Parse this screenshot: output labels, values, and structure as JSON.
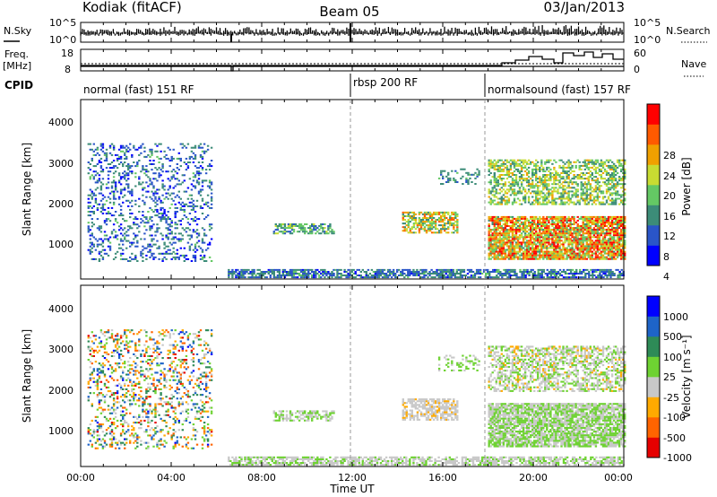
{
  "header": {
    "radar": "Kodiak (fitACF)",
    "beam": "Beam 05",
    "date": "03/Jan/2013"
  },
  "noise_panel": {
    "left_label": "N.Sky",
    "right_label": "N.Search",
    "left_ticks": [
      "10^5",
      "10^0"
    ],
    "right_ticks": [
      "10^5",
      "10^0"
    ]
  },
  "freq_panel": {
    "left_label_top": "Freq.",
    "left_label_bottom": "[MHz]",
    "right_label": "Nave",
    "left_ticks": [
      "18",
      "8"
    ],
    "right_ticks": [
      "60",
      "0"
    ]
  },
  "cpid": {
    "label": "CPID",
    "segments": [
      {
        "name": "normal (fast) 151 RF",
        "start": 0,
        "end": 12
      },
      {
        "name": "rbsp 200 RF",
        "start": 12,
        "end": 18
      },
      {
        "name": "normalsound (fast) 157 RF",
        "start": 18,
        "end": 24
      }
    ]
  },
  "x_axis": {
    "label": "Time UT",
    "ticks": [
      "00:00",
      "04:00",
      "08:00",
      "12:00",
      "16:00",
      "20:00",
      "00:00"
    ],
    "range_hours": [
      0,
      24
    ]
  },
  "power_panel": {
    "ylabel": "Slant Range [km]",
    "yticks": [
      "4000",
      "3000",
      "2000",
      "1000"
    ],
    "colorbar_label": "Power [dB]",
    "colorbar_ticks": [
      "28",
      "24",
      "20",
      "16",
      "12",
      "8",
      "4"
    ]
  },
  "velocity_panel": {
    "ylabel": "Slant Range [km]",
    "yticks": [
      "4000",
      "3000",
      "2000",
      "1000"
    ],
    "colorbar_label": "Velocity [m s⁻¹]",
    "colorbar_ticks": [
      "1000",
      "500",
      "100",
      "25",
      "-25",
      "-100",
      "-500",
      "-1000"
    ]
  },
  "chart_data": [
    {
      "type": "heatmap",
      "title": "Power",
      "xlabel": "Time UT",
      "ylabel": "Slant Range [km]",
      "xlim": [
        0,
        24
      ],
      "ylim": [
        180,
        4600
      ],
      "color_range": [
        0,
        30
      ],
      "colors": [
        "#0000ff",
        "#2a55c8",
        "#3c8c78",
        "#64c864",
        "#c8dc32",
        "#f0a000",
        "#ff5a00",
        "#ff0000"
      ],
      "regions": [
        {
          "t": [
            0.3,
            5.8
          ],
          "r": [
            600,
            3500
          ],
          "power": [
            2,
            12
          ],
          "density": 0.25
        },
        {
          "t": [
            6.5,
            24
          ],
          "r": [
            200,
            420
          ],
          "power": [
            3,
            12
          ],
          "density": 0.7
        },
        {
          "t": [
            8.5,
            11.2
          ],
          "r": [
            1280,
            1520
          ],
          "power": [
            6,
            16
          ],
          "density": 0.6
        },
        {
          "t": [
            14.2,
            16.6
          ],
          "r": [
            1300,
            1800
          ],
          "power": [
            8,
            24
          ],
          "density": 0.7
        },
        {
          "t": [
            15.8,
            17.6
          ],
          "r": [
            2500,
            2900
          ],
          "power": [
            6,
            12
          ],
          "density": 0.3
        },
        {
          "t": [
            18.0,
            24
          ],
          "r": [
            650,
            1700
          ],
          "power": [
            10,
            30
          ],
          "density": 0.85
        },
        {
          "t": [
            18.0,
            24
          ],
          "r": [
            2000,
            3100
          ],
          "power": [
            8,
            20
          ],
          "density": 0.55
        }
      ]
    },
    {
      "type": "heatmap",
      "title": "Velocity",
      "xlabel": "Time UT",
      "ylabel": "Slant Range [km]",
      "xlim": [
        0,
        24
      ],
      "ylim": [
        180,
        4600
      ],
      "color_range": [
        -1000,
        1000
      ],
      "colors": [
        "#e60000",
        "#ff6400",
        "#ffaa00",
        "#c8c8c8",
        "#6ed232",
        "#2e8b57",
        "#1e64c8",
        "#0000ff"
      ],
      "regions": [
        {
          "t": [
            0.3,
            5.8
          ],
          "r": [
            600,
            3500
          ],
          "velocity": [
            -800,
            800
          ],
          "density": 0.25
        },
        {
          "t": [
            6.5,
            24
          ],
          "r": [
            200,
            420
          ],
          "velocity": [
            -150,
            60
          ],
          "density": 0.7
        },
        {
          "t": [
            8.5,
            11.2
          ],
          "r": [
            1280,
            1520
          ],
          "velocity": [
            -200,
            150
          ],
          "density": 0.55
        },
        {
          "t": [
            14.2,
            16.6
          ],
          "r": [
            1300,
            1800
          ],
          "velocity": [
            -300,
            -60
          ],
          "density": 0.7
        },
        {
          "t": [
            15.8,
            17.6
          ],
          "r": [
            2500,
            2900
          ],
          "velocity": [
            -100,
            200
          ],
          "density": 0.3
        },
        {
          "t": [
            18.0,
            24
          ],
          "r": [
            650,
            1700
          ],
          "velocity": [
            -20,
            20
          ],
          "density": 0.85
        },
        {
          "t": [
            18.0,
            24
          ],
          "r": [
            2000,
            3100
          ],
          "velocity": [
            -300,
            150
          ],
          "density": 0.55
        }
      ]
    }
  ]
}
